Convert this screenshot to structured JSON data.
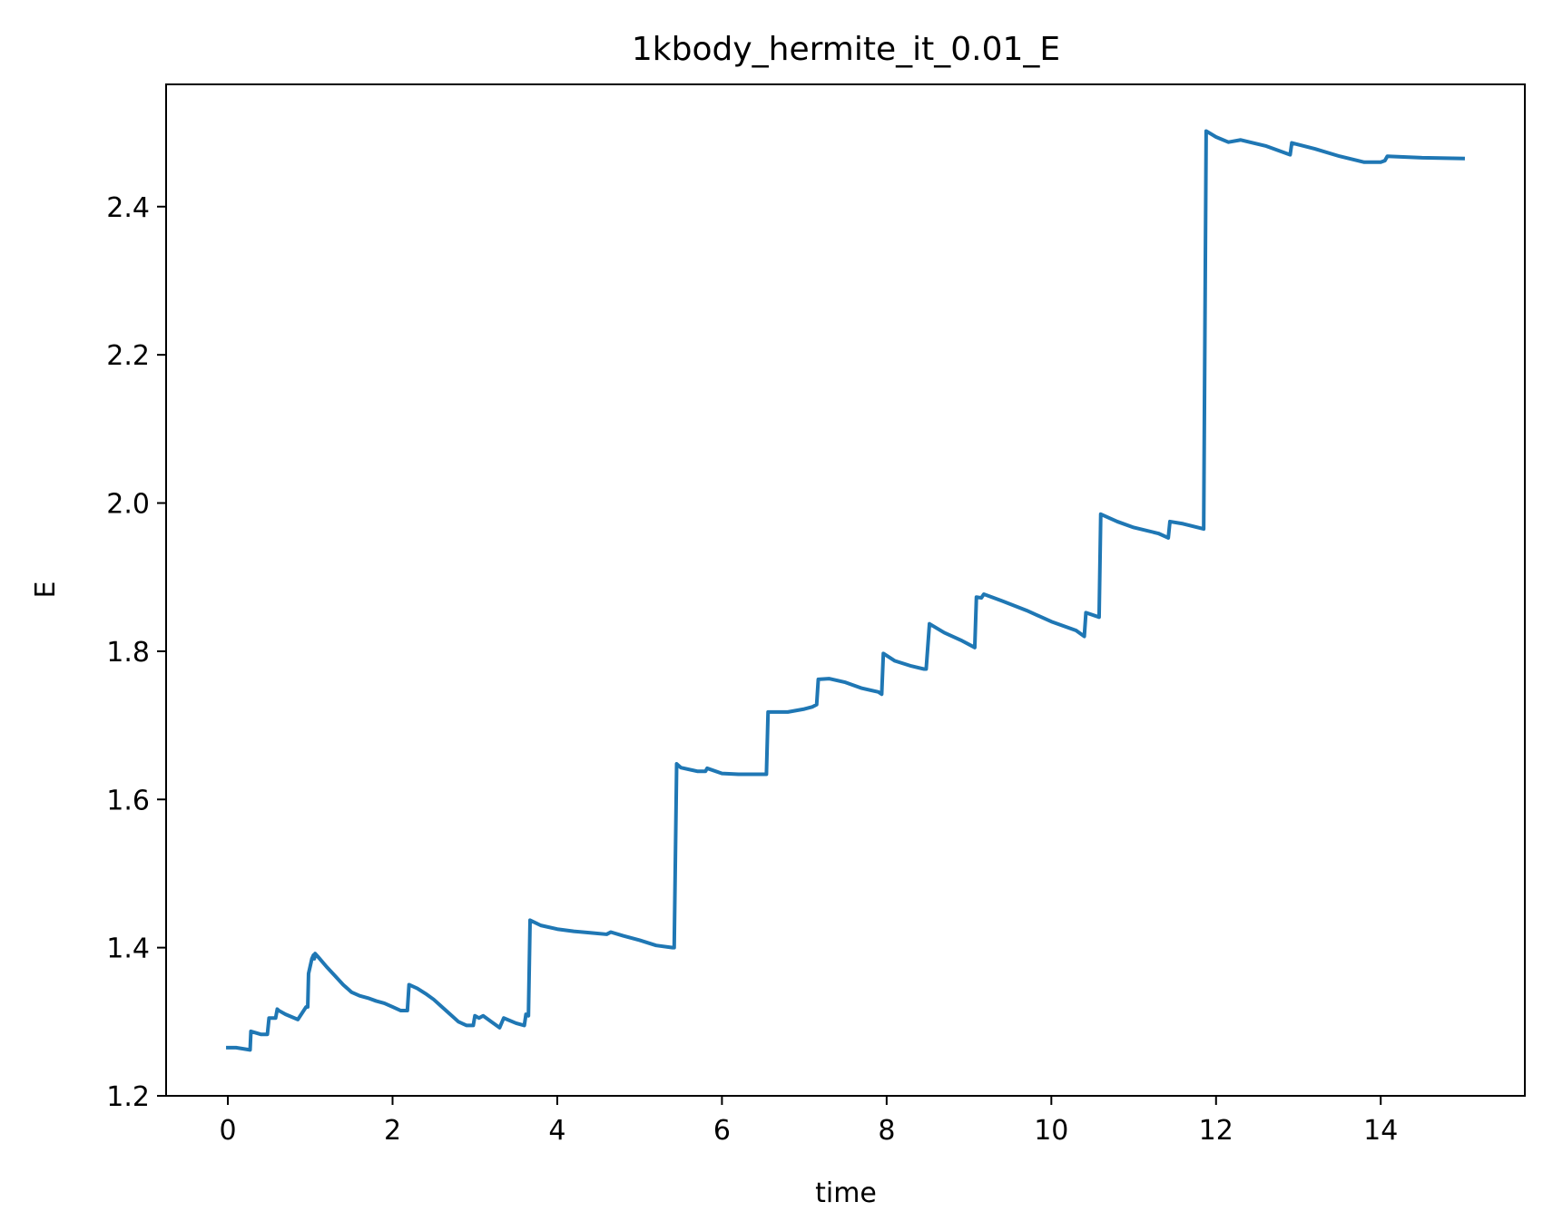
{
  "chart_data": {
    "type": "line",
    "title": "1kbody_hermite_it_0.01_E",
    "xlabel": "time",
    "ylabel": "E",
    "xlim": [
      -0.75,
      15.75
    ],
    "ylim": [
      1.2,
      2.565
    ],
    "x_ticks": [
      0,
      2,
      4,
      6,
      8,
      10,
      12,
      14
    ],
    "y_ticks": [
      1.2,
      1.4,
      1.6,
      1.8,
      2.0,
      2.2,
      2.4
    ],
    "x_tick_labels": [
      "0",
      "2",
      "4",
      "6",
      "8",
      "10",
      "12",
      "14"
    ],
    "y_tick_labels": [
      "1.2",
      "1.4",
      "1.6",
      "1.8",
      "2.0",
      "2.2",
      "2.4"
    ],
    "grid": false,
    "legend": "none",
    "line_color": "#1f77b4",
    "series": [
      {
        "x": [
          0.0,
          0.1,
          0.27,
          0.28,
          0.4,
          0.48,
          0.5,
          0.58,
          0.6,
          0.62,
          0.7,
          0.85,
          0.95,
          0.97,
          0.98,
          1.02,
          1.04,
          1.05,
          1.06,
          1.1,
          1.2,
          1.3,
          1.4,
          1.5,
          1.6,
          1.7,
          1.8,
          1.9,
          2.0,
          2.1,
          2.18,
          2.2,
          2.3,
          2.4,
          2.5,
          2.6,
          2.7,
          2.8,
          2.9,
          2.98,
          3.0,
          3.05,
          3.1,
          3.2,
          3.3,
          3.35,
          3.5,
          3.6,
          3.62,
          3.65,
          3.67,
          3.8,
          4.0,
          4.2,
          4.4,
          4.6,
          4.65,
          4.8,
          5.0,
          5.2,
          5.4,
          5.42,
          5.45,
          5.5,
          5.7,
          5.8,
          5.82,
          6.0,
          6.2,
          6.4,
          6.54,
          6.56,
          6.7,
          6.8,
          6.9,
          7.0,
          7.1,
          7.15,
          7.17,
          7.3,
          7.5,
          7.7,
          7.9,
          7.94,
          7.96,
          8.1,
          8.3,
          8.45,
          8.48,
          8.52,
          8.7,
          8.9,
          9.07,
          9.09,
          9.15,
          9.18,
          9.4,
          9.7,
          10.0,
          10.3,
          10.4,
          10.42,
          10.58,
          10.6,
          10.8,
          11.0,
          11.3,
          11.42,
          11.44,
          11.6,
          11.85,
          11.88,
          12.0,
          12.15,
          12.3,
          12.6,
          12.9,
          12.92,
          13.2,
          13.5,
          13.8,
          14.0,
          14.05,
          14.08,
          14.5,
          15.0
        ],
        "values": [
          1.265,
          1.265,
          1.262,
          1.287,
          1.283,
          1.283,
          1.305,
          1.305,
          1.317,
          1.315,
          1.31,
          1.303,
          1.32,
          1.32,
          1.365,
          1.385,
          1.39,
          1.385,
          1.392,
          1.387,
          1.374,
          1.362,
          1.35,
          1.34,
          1.335,
          1.332,
          1.328,
          1.325,
          1.32,
          1.315,
          1.315,
          1.35,
          1.345,
          1.338,
          1.33,
          1.32,
          1.31,
          1.3,
          1.295,
          1.295,
          1.308,
          1.305,
          1.308,
          1.3,
          1.292,
          1.305,
          1.298,
          1.295,
          1.31,
          1.308,
          1.437,
          1.43,
          1.425,
          1.422,
          1.42,
          1.418,
          1.421,
          1.416,
          1.41,
          1.403,
          1.4,
          1.4,
          1.648,
          1.643,
          1.638,
          1.638,
          1.642,
          1.635,
          1.634,
          1.634,
          1.634,
          1.718,
          1.718,
          1.718,
          1.72,
          1.722,
          1.725,
          1.728,
          1.762,
          1.763,
          1.758,
          1.75,
          1.745,
          1.742,
          1.797,
          1.787,
          1.78,
          1.776,
          1.776,
          1.837,
          1.825,
          1.815,
          1.805,
          1.873,
          1.872,
          1.877,
          1.868,
          1.855,
          1.84,
          1.828,
          1.82,
          1.852,
          1.846,
          1.985,
          1.975,
          1.967,
          1.959,
          1.953,
          1.975,
          1.972,
          1.965,
          2.502,
          2.494,
          2.487,
          2.49,
          2.482,
          2.47,
          2.486,
          2.478,
          2.468,
          2.46,
          2.46,
          2.462,
          2.468,
          2.466,
          2.465
        ]
      }
    ]
  }
}
